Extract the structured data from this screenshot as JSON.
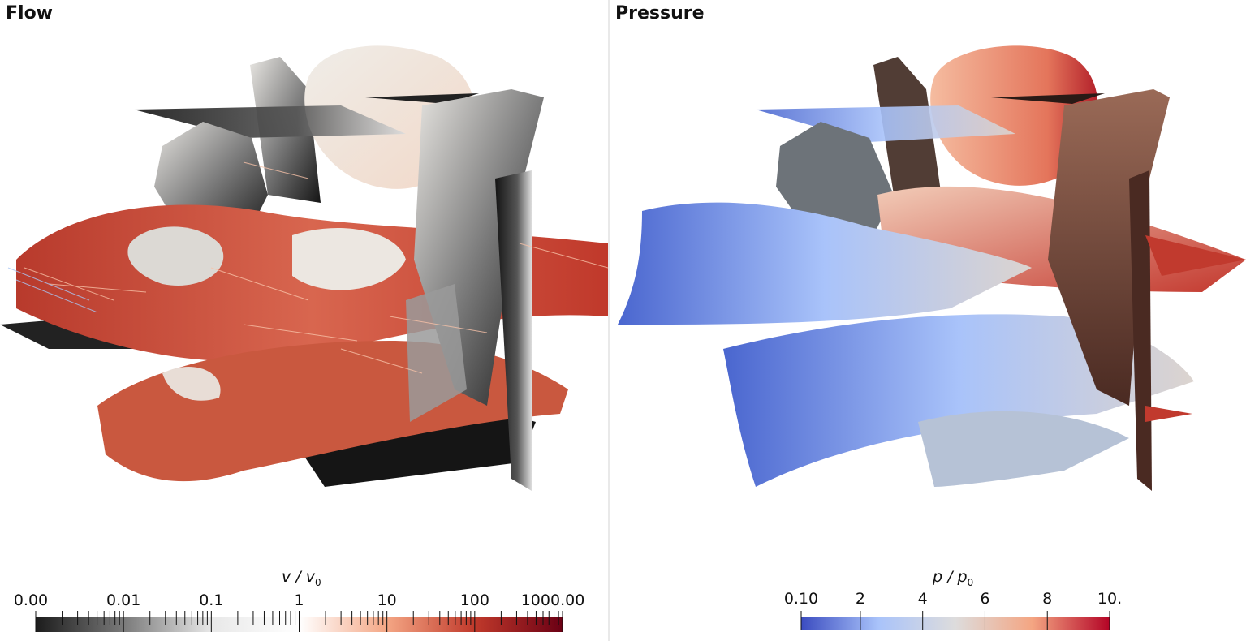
{
  "panels": {
    "flow": {
      "title": "Flow",
      "colorbar": {
        "variable": "v",
        "reference": "v",
        "reference_subscript": "0",
        "separator": " / ",
        "scale": "log",
        "tick_labels": [
          "0.00",
          "0.01",
          "0.1",
          "1",
          "10",
          "100",
          "1000.00"
        ],
        "colormap": [
          "#1c1c1c",
          "#7a7a7a",
          "#e8e8e8",
          "#ffffff",
          "#f4a684",
          "#c0392b",
          "#6b0014"
        ]
      }
    },
    "pressure": {
      "title": "Pressure",
      "colorbar": {
        "variable": "p",
        "reference": "p",
        "reference_subscript": "0",
        "separator": " / ",
        "scale": "linear",
        "tick_labels": [
          "0.10",
          "2",
          "4",
          "6",
          "8",
          "10."
        ],
        "tick_values": [
          0.1,
          2,
          4,
          6,
          8,
          10
        ],
        "range": [
          0.1,
          10
        ],
        "colormap": [
          "#3b4cc0",
          "#a9c3fa",
          "#dddcdc",
          "#f4a582",
          "#b40426"
        ]
      }
    }
  }
}
